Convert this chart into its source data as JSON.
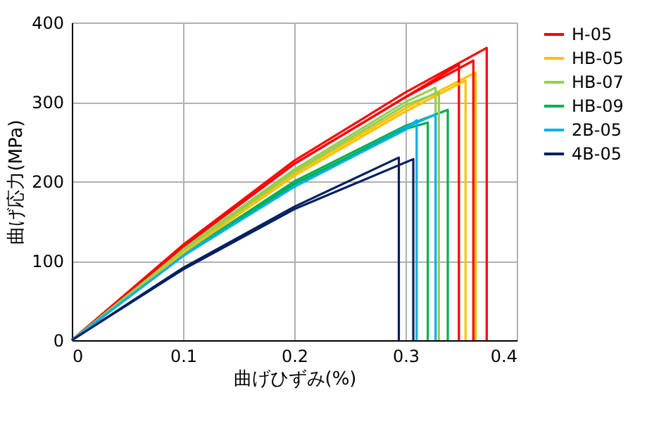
{
  "chart_data": {
    "type": "line",
    "xlabel": "曲げひずみ(%)",
    "ylabel": "曲げ応力(MPa)",
    "xlim": [
      0,
      0.4
    ],
    "xticks": [
      0,
      0.1,
      0.2,
      0.3,
      0.4
    ],
    "ylim": [
      0,
      400
    ],
    "yticks": [
      0,
      100,
      200,
      300,
      400
    ],
    "grid": true,
    "legend": "right",
    "marker": "none",
    "line_style": "solid",
    "series": [
      {
        "name": "H-05",
        "color": "#ff0000",
        "x": [
          0,
          0.1,
          0.2,
          0.3,
          0.373,
          0.373
        ],
        "values": [
          0,
          120,
          226,
          312,
          368,
          0
        ]
      },
      {
        "color": "#ff0000",
        "x": [
          0,
          0.1,
          0.2,
          0.3,
          0.361,
          0.361
        ],
        "values": [
          0,
          118,
          222,
          306,
          352,
          0
        ]
      },
      {
        "color": "#ff0000",
        "x": [
          0,
          0.1,
          0.2,
          0.3,
          0.348,
          0.348
        ],
        "values": [
          0,
          118,
          222,
          306,
          347,
          0
        ]
      },
      {
        "name": "HB-05",
        "color": "#ffc000",
        "x": [
          0,
          0.1,
          0.2,
          0.3,
          0.363,
          0.363
        ],
        "values": [
          0,
          112,
          210,
          292,
          337,
          0
        ]
      },
      {
        "color": "#ffc000",
        "x": [
          0,
          0.1,
          0.2,
          0.3,
          0.354,
          0.354
        ],
        "values": [
          0,
          110,
          207,
          288,
          327,
          0
        ]
      },
      {
        "name": "HB-07",
        "color": "#92d050",
        "x": [
          0,
          0.1,
          0.2,
          0.3,
          0.327,
          0.327
        ],
        "values": [
          0,
          115,
          215,
          300,
          318,
          0
        ]
      },
      {
        "color": "#92d050",
        "x": [
          0,
          0.1,
          0.2,
          0.3,
          0.33,
          0.33
        ],
        "values": [
          0,
          113,
          212,
          296,
          312,
          0
        ]
      },
      {
        "name": "HB-09",
        "color": "#00b050",
        "x": [
          0,
          0.1,
          0.2,
          0.3,
          0.338,
          0.338
        ],
        "values": [
          0,
          108,
          200,
          270,
          290,
          0
        ]
      },
      {
        "color": "#00b050",
        "x": [
          0,
          0.1,
          0.2,
          0.3,
          0.32,
          0.32
        ],
        "values": [
          0,
          106,
          197,
          266,
          274,
          0
        ]
      },
      {
        "name": "2B-05",
        "color": "#00b0f0",
        "x": [
          0,
          0.1,
          0.2,
          0.3,
          0.327,
          0.327
        ],
        "values": [
          0,
          108,
          195,
          268,
          284,
          0
        ]
      },
      {
        "color": "#00b0f0",
        "x": [
          0,
          0.1,
          0.2,
          0.3,
          0.31,
          0.31
        ],
        "values": [
          0,
          106,
          193,
          265,
          277,
          0
        ]
      },
      {
        "name": "4B-05",
        "color": "#002060",
        "x": [
          0,
          0.1,
          0.2,
          0.294,
          0.294
        ],
        "values": [
          0,
          91,
          168,
          230,
          0
        ]
      },
      {
        "color": "#002060",
        "x": [
          0,
          0.1,
          0.2,
          0.307,
          0.307
        ],
        "values": [
          0,
          89,
          165,
          228,
          0
        ]
      }
    ]
  }
}
